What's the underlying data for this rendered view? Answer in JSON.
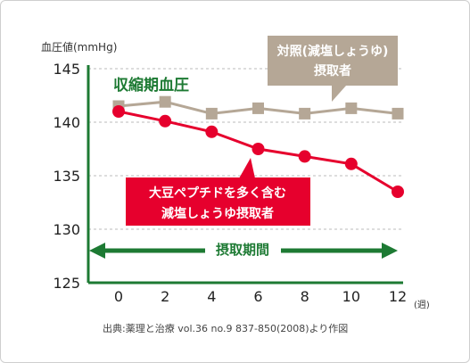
{
  "chart_data": {
    "type": "line",
    "title": "収縮期血圧",
    "ylabel": "血圧値(mmHg)",
    "xunit": "(週)",
    "ylim": [
      125,
      145
    ],
    "yticks": [
      125,
      130,
      135,
      140,
      145
    ],
    "x": [
      0,
      2,
      4,
      6,
      8,
      10,
      12
    ],
    "grid": "dashed horizontal",
    "series": [
      {
        "name_lines": [
          "対照(減塩しょうゆ)",
          "摂取者"
        ],
        "values": [
          141.5,
          141.9,
          140.8,
          141.3,
          140.8,
          141.3,
          140.8
        ],
        "color": "#b5a796",
        "marker": "square"
      },
      {
        "name_lines": [
          "大豆ペプチドを多く含む",
          "減塩しょうゆ摂取者"
        ],
        "values": [
          141.0,
          140.1,
          139.1,
          137.5,
          136.8,
          136.1,
          133.5
        ],
        "color": "#e6002d",
        "marker": "circle"
      }
    ],
    "period_label": "摂取期間",
    "source": "出典:薬理と治療 vol.36 no.9 837-850(2008)より作図"
  },
  "colors": {
    "axis_green": "#1d7a33",
    "grid": "#bbbbbb",
    "text": "#333333"
  }
}
